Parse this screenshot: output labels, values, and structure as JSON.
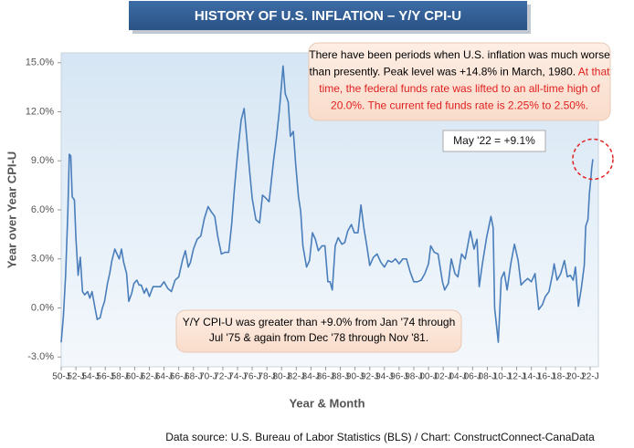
{
  "chart_data": {
    "type": "line",
    "title": "HISTORY OF U.S. INFLATION – Y/Y CPI-U",
    "x_label": "Year & Month",
    "y_label": "Year over Year CPI-U",
    "source": "Data source: U.S. Bureau of Labor Statistics (BLS) / Chart: ConstructConnect-CanaData",
    "color": "#4a7ebb",
    "xlim": [
      1950,
      2022.5
    ],
    "ylim": [
      -3.6,
      15.6
    ],
    "yticks": [
      {
        "value": -3,
        "label": "-3.0%"
      },
      {
        "value": 0,
        "label": "0.0%"
      },
      {
        "value": 3,
        "label": "3.0%"
      },
      {
        "value": 6,
        "label": "6.0%"
      },
      {
        "value": 9,
        "label": "9.0%"
      },
      {
        "value": 12,
        "label": "12.0%"
      },
      {
        "value": 15,
        "label": "15.0%"
      }
    ],
    "xticks": [
      {
        "value": 1950,
        "label": "50-J"
      },
      {
        "value": 1952,
        "label": "52-J"
      },
      {
        "value": 1954,
        "label": "54-J"
      },
      {
        "value": 1956,
        "label": "56-J"
      },
      {
        "value": 1958,
        "label": "58-J"
      },
      {
        "value": 1960,
        "label": "60-J"
      },
      {
        "value": 1962,
        "label": "62-J"
      },
      {
        "value": 1964,
        "label": "64-J"
      },
      {
        "value": 1966,
        "label": "66-J"
      },
      {
        "value": 1968,
        "label": "68-J"
      },
      {
        "value": 1970,
        "label": "70-J"
      },
      {
        "value": 1972,
        "label": "72-J"
      },
      {
        "value": 1974,
        "label": "74-J"
      },
      {
        "value": 1976,
        "label": "76-J"
      },
      {
        "value": 1978,
        "label": "78-J"
      },
      {
        "value": 1980,
        "label": "80-J"
      },
      {
        "value": 1982,
        "label": "82-J"
      },
      {
        "value": 1984,
        "label": "84-J"
      },
      {
        "value": 1986,
        "label": "86-J"
      },
      {
        "value": 1988,
        "label": "88-J"
      },
      {
        "value": 1990,
        "label": "90-J"
      },
      {
        "value": 1992,
        "label": "92-J"
      },
      {
        "value": 1994,
        "label": "94-J"
      },
      {
        "value": 1996,
        "label": "96-J"
      },
      {
        "value": 1998,
        "label": "98-J"
      },
      {
        "value": 2000,
        "label": "00-J"
      },
      {
        "value": 2002,
        "label": "02-J"
      },
      {
        "value": 2004,
        "label": "04-J"
      },
      {
        "value": 2006,
        "label": "06-J"
      },
      {
        "value": 2008,
        "label": "08-J"
      },
      {
        "value": 2010,
        "label": "10-J"
      },
      {
        "value": 2012,
        "label": "12-J"
      },
      {
        "value": 2014,
        "label": "14-J"
      },
      {
        "value": 2016,
        "label": "16-J"
      },
      {
        "value": 2018,
        "label": "18-J"
      },
      {
        "value": 2020,
        "label": "20-J"
      },
      {
        "value": 2022,
        "label": "22-J"
      }
    ],
    "x": [
      1950.0,
      1950.3,
      1950.6,
      1950.9,
      1951.1,
      1951.3,
      1951.5,
      1951.8,
      1952.0,
      1952.3,
      1952.6,
      1952.9,
      1953.2,
      1953.6,
      1953.9,
      1954.2,
      1954.6,
      1954.9,
      1955.3,
      1955.6,
      1955.9,
      1956.3,
      1956.6,
      1956.9,
      1957.3,
      1957.6,
      1957.9,
      1958.2,
      1958.5,
      1958.9,
      1959.2,
      1959.6,
      1959.9,
      1960.3,
      1960.6,
      1960.9,
      1961.3,
      1961.6,
      1962.0,
      1962.5,
      1963.0,
      1963.5,
      1964.0,
      1964.5,
      1965.0,
      1965.5,
      1966.0,
      1966.5,
      1966.9,
      1967.3,
      1967.6,
      1968.0,
      1968.5,
      1969.0,
      1969.5,
      1970.0,
      1970.4,
      1970.9,
      1971.3,
      1971.8,
      1972.3,
      1972.8,
      1973.2,
      1973.6,
      1974.0,
      1974.5,
      1974.9,
      1975.3,
      1975.6,
      1976.0,
      1976.5,
      1977.0,
      1977.4,
      1977.9,
      1978.3,
      1978.9,
      1979.3,
      1979.7,
      1980.2,
      1980.5,
      1980.9,
      1981.2,
      1981.6,
      1981.9,
      1982.3,
      1982.6,
      1982.9,
      1983.4,
      1983.8,
      1984.2,
      1984.6,
      1985.0,
      1985.5,
      1985.9,
      1986.3,
      1986.6,
      1986.9,
      1987.3,
      1987.7,
      1988.2,
      1988.6,
      1989.0,
      1989.5,
      1989.9,
      1990.4,
      1990.8,
      1991.2,
      1991.6,
      1992.0,
      1992.5,
      1993.0,
      1993.5,
      1994.0,
      1994.5,
      1995.0,
      1995.5,
      1996.0,
      1996.5,
      1997.0,
      1997.5,
      1998.0,
      1998.5,
      1999.0,
      1999.5,
      2000.0,
      2000.3,
      2000.8,
      2001.3,
      2001.9,
      2002.2,
      2002.7,
      2003.1,
      2003.6,
      2004.0,
      2004.5,
      2005.0,
      2005.7,
      2006.2,
      2006.6,
      2006.9,
      2007.3,
      2007.9,
      2008.5,
      2008.8,
      2009.0,
      2009.5,
      2009.9,
      2010.3,
      2010.7,
      2011.2,
      2011.7,
      2012.2,
      2012.6,
      2013.0,
      2013.5,
      2014.0,
      2014.5,
      2015.0,
      2015.5,
      2015.9,
      2016.4,
      2016.9,
      2017.1,
      2017.5,
      2018.0,
      2018.5,
      2018.9,
      2019.3,
      2019.7,
      2020.0,
      2020.4,
      2020.8,
      2021.2,
      2021.4,
      2021.7,
      2021.9,
      2022.1,
      2022.2,
      2022.37
    ],
    "values": [
      -2.1,
      -0.5,
      2.0,
      5.8,
      9.4,
      9.3,
      6.8,
      6.6,
      4.3,
      2.0,
      3.1,
      1.0,
      0.8,
      1.0,
      0.6,
      1.0,
      0.0,
      -0.7,
      -0.6,
      0.0,
      0.4,
      1.5,
      2.1,
      2.9,
      3.6,
      3.3,
      3.0,
      3.6,
      2.8,
      2.1,
      0.4,
      0.9,
      1.5,
      1.7,
      1.4,
      1.4,
      0.9,
      1.2,
      0.7,
      1.3,
      1.3,
      1.3,
      1.6,
      1.2,
      1.0,
      1.7,
      1.9,
      2.9,
      3.5,
      2.5,
      2.8,
      3.6,
      4.2,
      4.4,
      5.5,
      6.2,
      5.9,
      5.6,
      4.4,
      3.3,
      3.4,
      3.4,
      5.1,
      7.4,
      9.4,
      11.5,
      12.2,
      10.2,
      8.6,
      6.7,
      5.4,
      5.2,
      6.9,
      6.7,
      6.5,
      9.0,
      10.4,
      12.1,
      14.8,
      13.1,
      12.6,
      10.5,
      10.8,
      8.9,
      6.8,
      5.9,
      3.8,
      2.5,
      2.9,
      4.6,
      4.2,
      3.5,
      3.8,
      3.8,
      1.6,
      1.6,
      1.1,
      3.8,
      4.3,
      3.9,
      4.0,
      4.7,
      5.1,
      4.6,
      4.6,
      6.3,
      4.9,
      3.8,
      2.6,
      3.1,
      3.3,
      2.8,
      2.5,
      2.9,
      2.8,
      3.0,
      2.7,
      3.0,
      3.0,
      2.2,
      1.6,
      1.6,
      1.7,
      2.1,
      2.7,
      3.8,
      3.4,
      3.3,
      1.6,
      1.1,
      1.5,
      3.0,
      2.1,
      1.9,
      3.3,
      3.0,
      4.7,
      3.6,
      4.2,
      1.3,
      2.6,
      4.3,
      5.6,
      4.9,
      0.0,
      -2.1,
      1.8,
      2.2,
      1.1,
      2.7,
      3.9,
      2.9,
      1.4,
      1.6,
      1.8,
      1.6,
      2.1,
      -0.1,
      0.2,
      0.7,
      1.0,
      2.1,
      2.7,
      1.7,
      2.1,
      2.9,
      1.9,
      2.0,
      1.7,
      2.5,
      0.1,
      1.2,
      2.6,
      5.0,
      5.4,
      7.0,
      7.9,
      8.5,
      9.1
    ],
    "latest_label": "May '22 = +9.1%",
    "top_note": [
      [
        {
          "text": "There have been periods when U.S. inflation was much worse",
          "color": "#000000"
        }
      ],
      [
        {
          "text": "than presently. Peak level was +14.8% in March, 1980. ",
          "color": "#000000"
        },
        {
          "text": "At that",
          "color": "#e02020"
        }
      ],
      [
        {
          "text": "time, the federal funds rate was lifted to an all-time high of",
          "color": "#e02020"
        }
      ],
      [
        {
          "text": "20.0%. The current fed funds rate is 2.25% to 2.50%.",
          "color": "#e02020"
        }
      ]
    ],
    "bottom_note": [
      [
        {
          "text": "Y/Y CPI-U was greater than +9.0% from Jan '74 through",
          "color": "#000000"
        }
      ],
      [
        {
          "text": "Jul '75 & again from Dec '78 through Nov '81.",
          "color": "#000000"
        }
      ]
    ]
  }
}
